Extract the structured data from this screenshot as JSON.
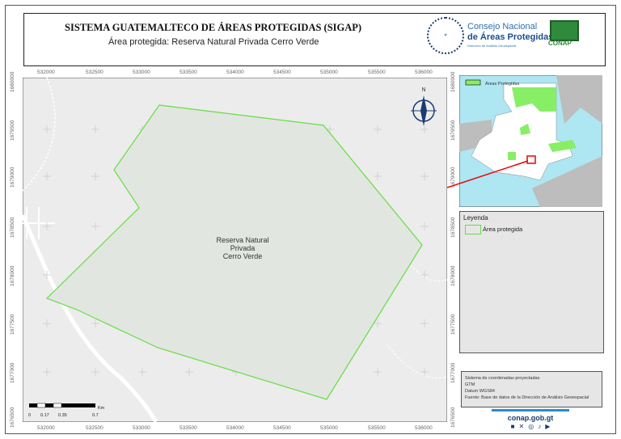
{
  "header": {
    "title": "SISTEMA GUATEMALTECO DE ÁREAS PROTEGIDAS  (SIGAP)",
    "subtitle": "Área protegida: Reserva Natural Privada Cerro Verde",
    "logo_seal_text": "GOBIERNO DE LA REPÚBLICA GUATEMALA",
    "conap_line1": "Consejo Nacional",
    "conap_line2": "de Áreas Protegidas",
    "conap_line3": "Dirección de Análisis Geoespacial",
    "conap_logo": "CONAP"
  },
  "map": {
    "x_ticks": [
      "532000",
      "532500",
      "533000",
      "533500",
      "534000",
      "534500",
      "535000",
      "535500",
      "536000"
    ],
    "y_ticks": [
      "1680000",
      "1679500",
      "1679000",
      "1678500",
      "1678000",
      "1677500",
      "1677000",
      "1676500"
    ],
    "area_label": [
      "Reserva Natural",
      "Privada",
      "Cerro Verde"
    ],
    "north_label": "N",
    "scale": {
      "labels": [
        "0",
        "0.17",
        "0.35",
        "0.7"
      ],
      "unit": "Km"
    },
    "colors": {
      "area_outline": "#66dd44",
      "area_fill": "#e2e6e0",
      "background": "#ececec"
    }
  },
  "inset": {
    "legend_label": "Áreas Protegidas",
    "colors": {
      "protected": "#88ee66",
      "water": "#aee6f2",
      "land": "#bdbdbd"
    }
  },
  "legend": {
    "title": "Leyenda",
    "items": [
      {
        "label": "Área protegida"
      }
    ]
  },
  "info": {
    "lines": [
      "Sistema de coordenadas proyectadas",
      "GTM",
      "Datum WGS84",
      "Fuente: Base de datos de la Dirección de Análisis Geoespacial"
    ]
  },
  "footer": {
    "website": "conap.gob.gt",
    "social": [
      "facebook-icon",
      "x-icon",
      "instagram-icon",
      "tiktok-icon",
      "youtube-icon"
    ]
  }
}
